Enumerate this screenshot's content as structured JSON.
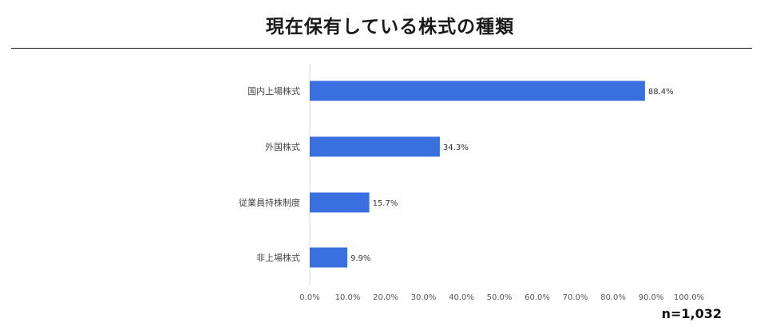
{
  "chart_data": {
    "type": "bar",
    "orientation": "horizontal",
    "title": "現在保有している株式の種類",
    "categories": [
      "国内上場株式",
      "外国株式",
      "従業員持株制度",
      "非上場株式"
    ],
    "values": [
      88.4,
      34.3,
      15.7,
      9.9
    ],
    "value_labels": [
      "88.4%",
      "34.3%",
      "15.7%",
      "9.9%"
    ],
    "xlim": [
      0,
      100
    ],
    "x_ticks": [
      "0.0%",
      "10.0%",
      "20.0%",
      "30.0%",
      "40.0%",
      "50.0%",
      "60.0%",
      "70.0%",
      "80.0%",
      "90.0%",
      "100.0%"
    ],
    "xlabel": "",
    "ylabel": "",
    "grid": false,
    "bar_color": "#3a6fdf",
    "sample_size": "n=1,032"
  }
}
